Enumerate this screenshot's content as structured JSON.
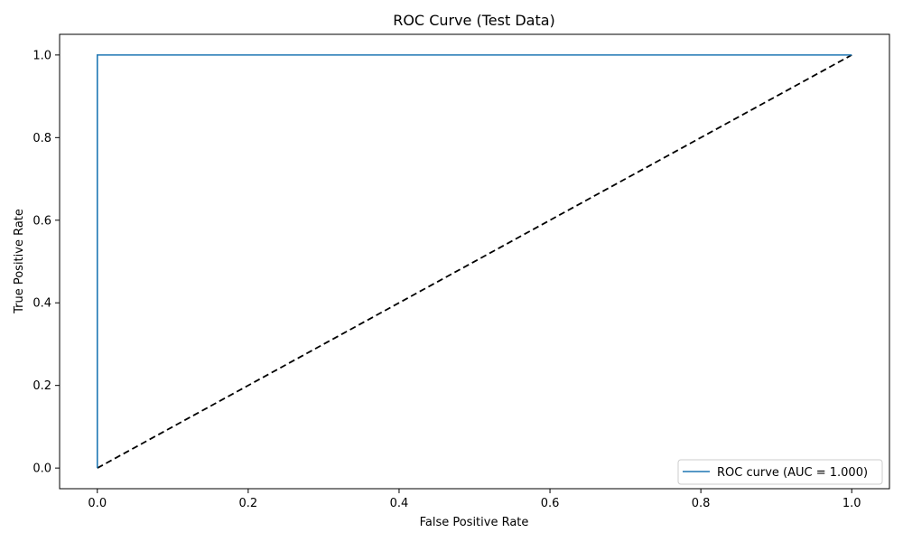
{
  "chart_data": {
    "type": "line",
    "title": "ROC Curve (Test Data)",
    "xlabel": "False Positive Rate",
    "ylabel": "True Positive Rate",
    "xlim": [
      -0.05,
      1.05
    ],
    "ylim": [
      -0.05,
      1.05
    ],
    "xticks": [
      0.0,
      0.2,
      0.4,
      0.6,
      0.8,
      1.0
    ],
    "yticks": [
      0.0,
      0.2,
      0.4,
      0.6,
      0.8,
      1.0
    ],
    "xtick_labels": [
      "0.0",
      "0.2",
      "0.4",
      "0.6",
      "0.8",
      "1.0"
    ],
    "ytick_labels": [
      "0.0",
      "0.2",
      "0.4",
      "0.6",
      "0.8",
      "1.0"
    ],
    "grid": false,
    "legend_position": "bottom-right",
    "series": [
      {
        "name": "ROC curve (AUC = 1.000)",
        "color": "#1f77b4",
        "style": "solid",
        "x": [
          0.0,
          0.0,
          1.0
        ],
        "y": [
          0.0,
          1.0,
          1.0
        ]
      },
      {
        "color": "#000000",
        "style": "dashed",
        "x": [
          0.0,
          1.0
        ],
        "y": [
          0.0,
          1.0
        ]
      }
    ]
  }
}
